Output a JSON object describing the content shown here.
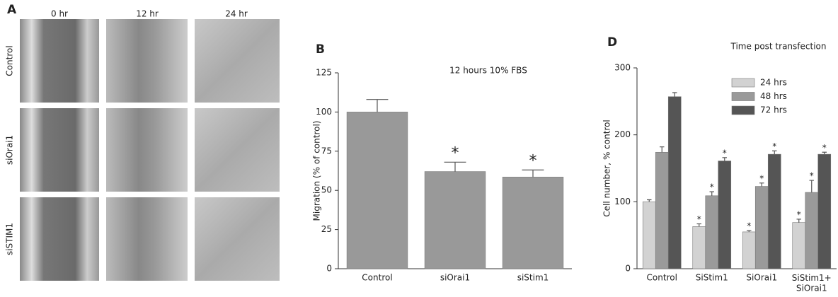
{
  "panel_a": {
    "label": "A",
    "columns": [
      "0 hr",
      "12 hr",
      "24 hr"
    ],
    "rows": [
      "Control",
      "siOrai1",
      "siSTIM1"
    ]
  },
  "chart_data": [
    {
      "type": "bar",
      "panel_label": "B",
      "annotation": "12 hours 10% FBS",
      "ylabel": "Migration (% of control)",
      "categories": [
        "Control",
        "siOrai1",
        "siStim1"
      ],
      "values": [
        100,
        62,
        58.5
      ],
      "errors": [
        8,
        6,
        4.5
      ],
      "significance": [
        null,
        "*",
        "*"
      ],
      "color": "#999999",
      "ylim": [
        0,
        125
      ],
      "yticks": [
        0,
        25,
        50,
        75,
        100,
        125
      ]
    },
    {
      "type": "grouped_bar",
      "panel_label": "D",
      "title": "Time post transfection",
      "ylabel": "Cell number, % control",
      "categories": [
        "Control",
        "SiStim1",
        "SiOrai1",
        "SiStim1+\nSiOrai1"
      ],
      "series": [
        {
          "name": "24 hrs",
          "color": "#d2d2d2",
          "values": [
            100,
            63,
            55,
            69
          ],
          "errors": [
            3,
            4,
            2,
            5
          ],
          "significance": [
            null,
            "*",
            "*",
            "*"
          ]
        },
        {
          "name": "48 hrs",
          "color": "#9a9a9a",
          "values": [
            174,
            109,
            123,
            114
          ],
          "errors": [
            8,
            6,
            5,
            18
          ],
          "significance": [
            null,
            "*",
            "*",
            "*"
          ]
        },
        {
          "name": "72 hrs",
          "color": "#555555",
          "values": [
            257,
            161,
            171,
            171
          ],
          "errors": [
            6,
            5,
            5,
            3
          ],
          "significance": [
            null,
            "*",
            "*",
            "*"
          ]
        }
      ],
      "ylim": [
        0,
        300
      ],
      "yticks": [
        0,
        100,
        200,
        300
      ],
      "legend": "upper right"
    }
  ]
}
